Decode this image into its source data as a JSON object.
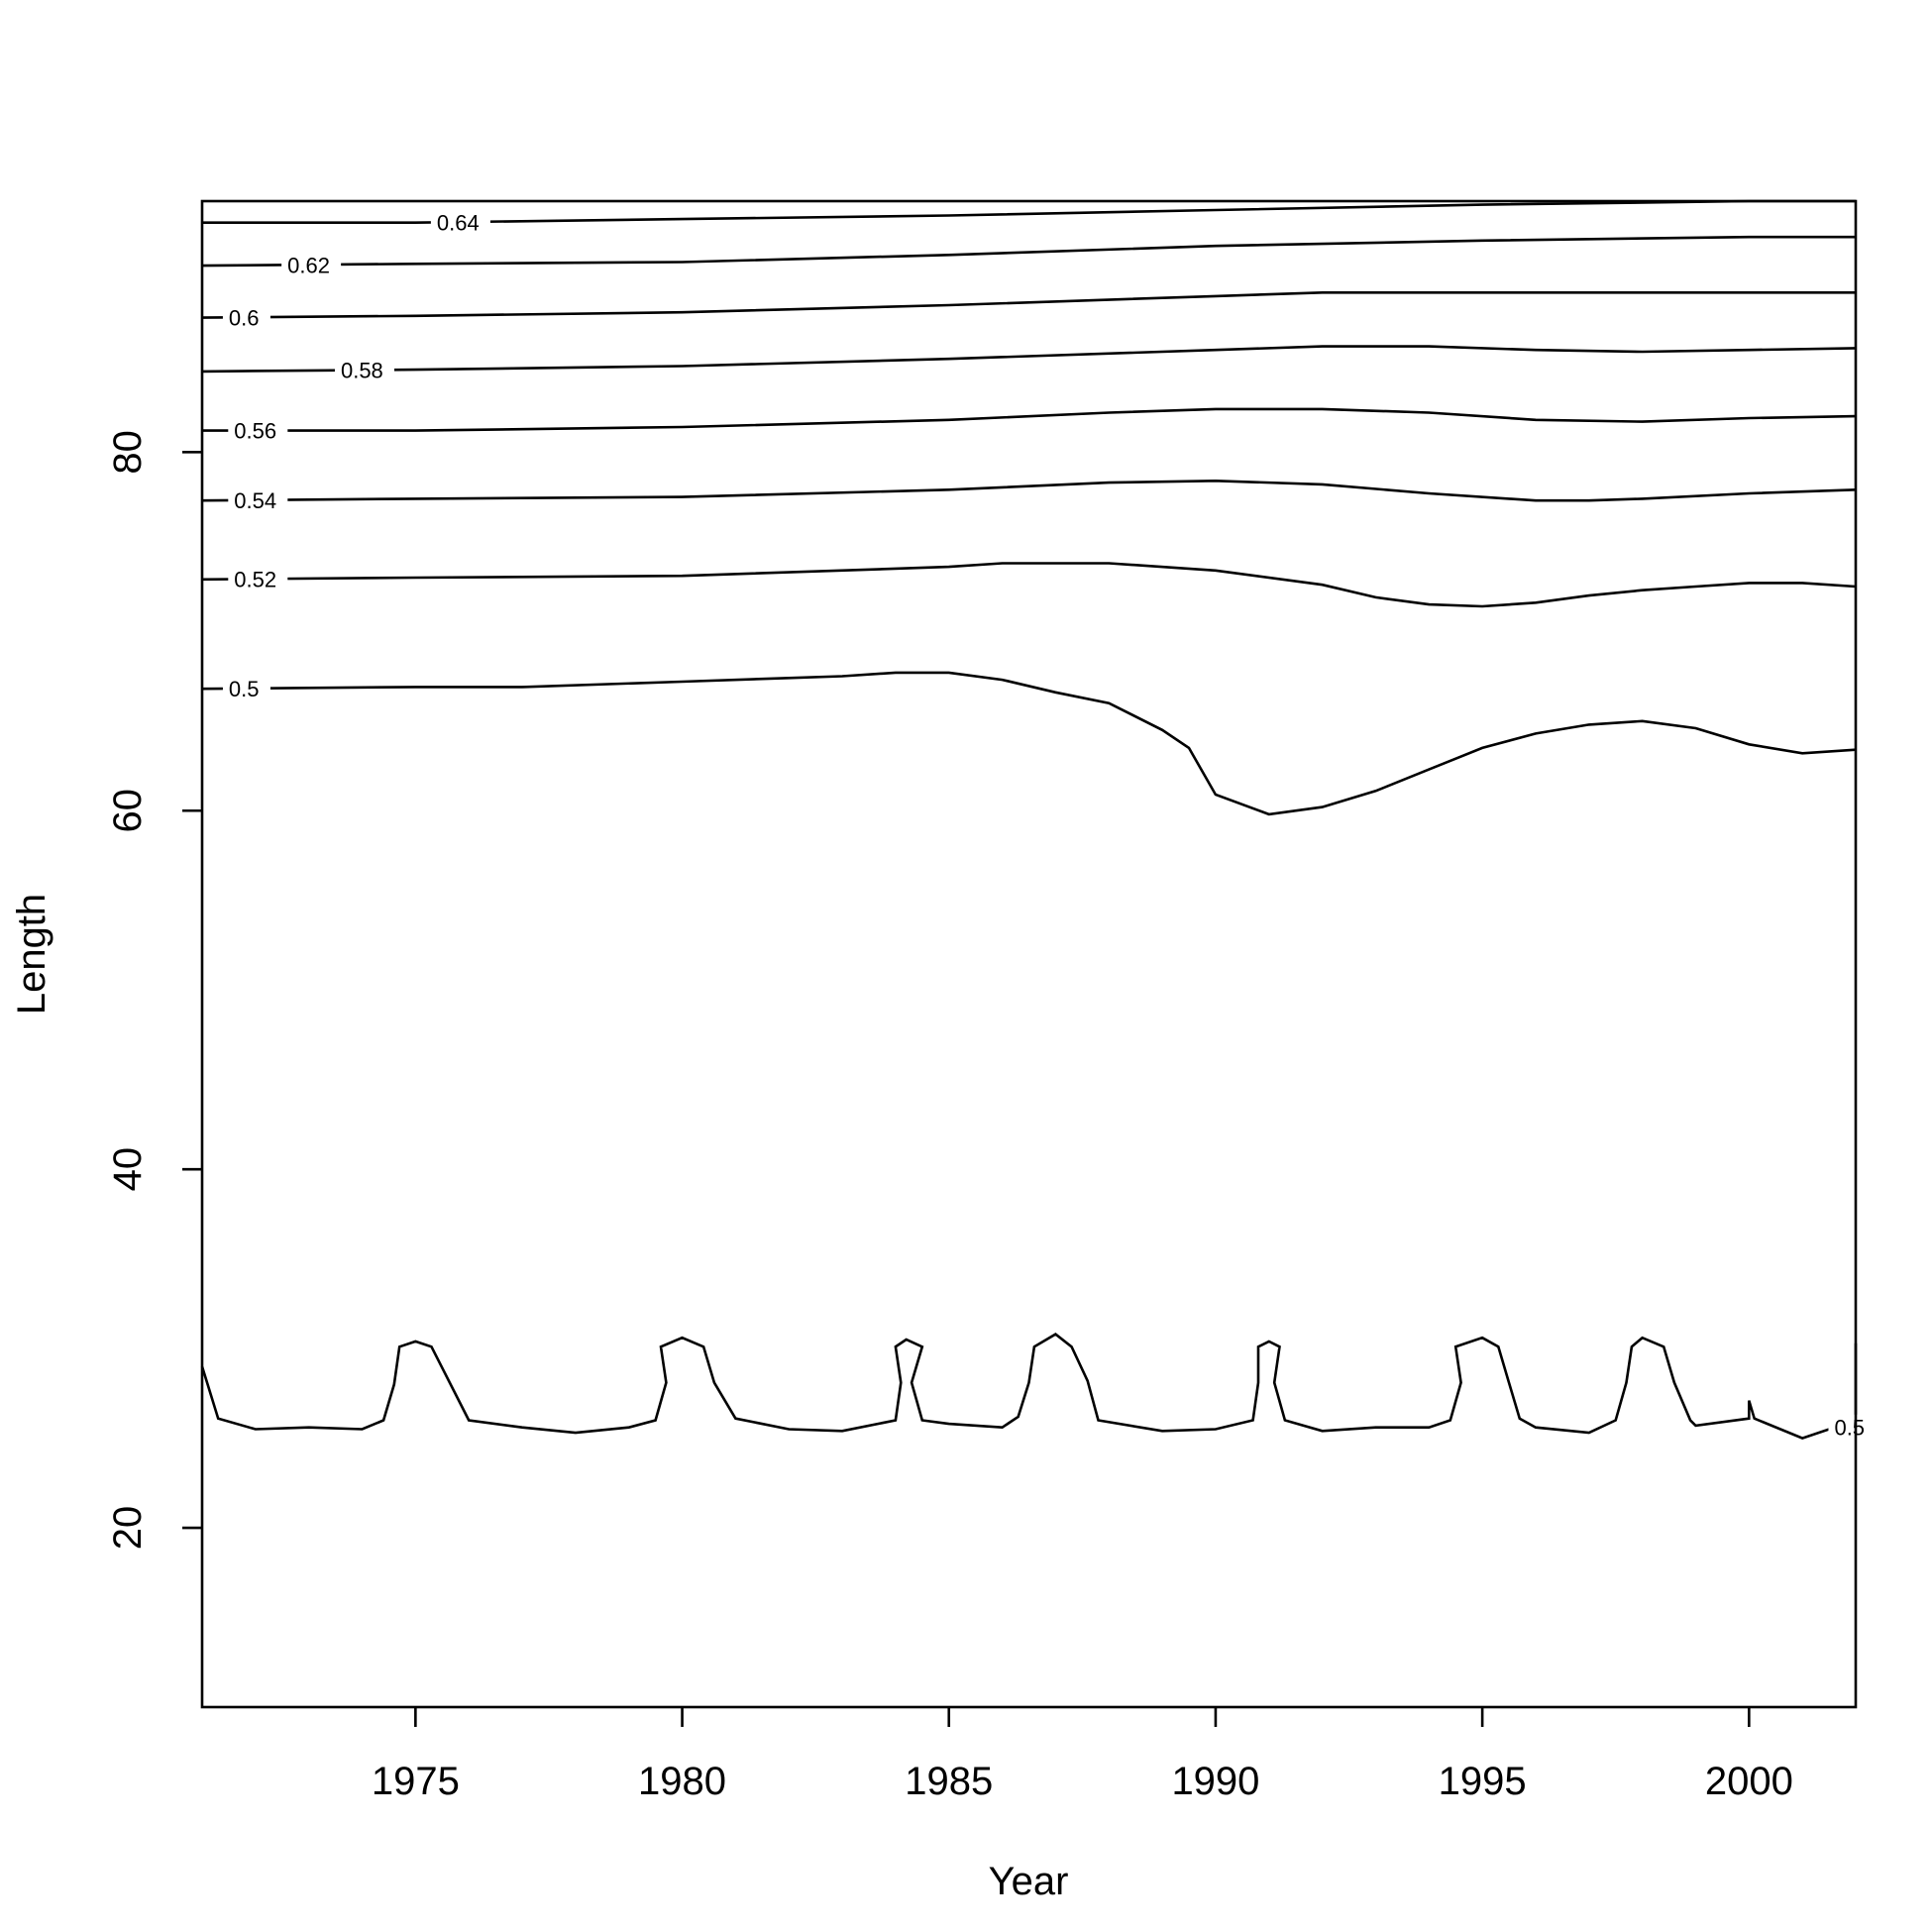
{
  "chart_data": {
    "type": "line",
    "subtype": "contour",
    "title": "",
    "xlabel": "Year",
    "ylabel": "Length",
    "xlim": [
      1971,
      2002
    ],
    "ylim": [
      10,
      94
    ],
    "x_ticks": [
      1975,
      1980,
      1985,
      1990,
      1995,
      2000
    ],
    "y_ticks": [
      20,
      40,
      60,
      80
    ],
    "grid": false,
    "contours": [
      {
        "level": 0.64,
        "label": "0.64",
        "label_year": 1975.4,
        "points": [
          [
            1971,
            92.8
          ],
          [
            1975,
            92.8
          ],
          [
            1980,
            93.0
          ],
          [
            1985,
            93.2
          ],
          [
            1990,
            93.5
          ],
          [
            1995,
            93.8
          ],
          [
            2000,
            94.0
          ],
          [
            2002,
            94.0
          ]
        ]
      },
      {
        "level": 0.62,
        "label": "0.62",
        "label_year": 1972.6,
        "points": [
          [
            1971,
            90.4
          ],
          [
            1975,
            90.5
          ],
          [
            1980,
            90.6
          ],
          [
            1985,
            91.0
          ],
          [
            1990,
            91.5
          ],
          [
            1995,
            91.8
          ],
          [
            2000,
            92.0
          ],
          [
            2002,
            92.0
          ]
        ]
      },
      {
        "level": 0.6,
        "label": "0.6",
        "label_year": 1971.5,
        "points": [
          [
            1971,
            87.5
          ],
          [
            1975,
            87.6
          ],
          [
            1980,
            87.8
          ],
          [
            1985,
            88.2
          ],
          [
            1990,
            88.7
          ],
          [
            1992,
            88.9
          ],
          [
            1995,
            88.9
          ],
          [
            2000,
            88.9
          ],
          [
            2002,
            88.9
          ]
        ]
      },
      {
        "level": 0.58,
        "label": "0.58",
        "label_year": 1973.6,
        "points": [
          [
            1971,
            84.5
          ],
          [
            1975,
            84.6
          ],
          [
            1980,
            84.8
          ],
          [
            1985,
            85.2
          ],
          [
            1990,
            85.7
          ],
          [
            1992,
            85.9
          ],
          [
            1994,
            85.9
          ],
          [
            1996,
            85.7
          ],
          [
            1998,
            85.6
          ],
          [
            2000,
            85.7
          ],
          [
            2002,
            85.8
          ]
        ]
      },
      {
        "level": 0.56,
        "label": "0.56",
        "label_year": 1971.6,
        "points": [
          [
            1971,
            81.2
          ],
          [
            1975,
            81.2
          ],
          [
            1980,
            81.4
          ],
          [
            1985,
            81.8
          ],
          [
            1988,
            82.2
          ],
          [
            1990,
            82.4
          ],
          [
            1992,
            82.4
          ],
          [
            1994,
            82.2
          ],
          [
            1996,
            81.8
          ],
          [
            1998,
            81.7
          ],
          [
            2000,
            81.9
          ],
          [
            2002,
            82.0
          ]
        ]
      },
      {
        "level": 0.54,
        "label": "0.54",
        "label_year": 1971.6,
        "points": [
          [
            1971,
            77.3
          ],
          [
            1975,
            77.4
          ],
          [
            1980,
            77.5
          ],
          [
            1985,
            77.9
          ],
          [
            1988,
            78.3
          ],
          [
            1990,
            78.4
          ],
          [
            1992,
            78.2
          ],
          [
            1994,
            77.7
          ],
          [
            1996,
            77.3
          ],
          [
            1997,
            77.3
          ],
          [
            1998,
            77.4
          ],
          [
            2000,
            77.7
          ],
          [
            2002,
            77.9
          ]
        ]
      },
      {
        "level": 0.52,
        "label": "0.52",
        "label_year": 1971.6,
        "points": [
          [
            1971,
            72.9
          ],
          [
            1975,
            73.0
          ],
          [
            1980,
            73.1
          ],
          [
            1985,
            73.6
          ],
          [
            1986,
            73.8
          ],
          [
            1988,
            73.8
          ],
          [
            1990,
            73.4
          ],
          [
            1992,
            72.6
          ],
          [
            1993,
            71.9
          ],
          [
            1994,
            71.5
          ],
          [
            1995,
            71.4
          ],
          [
            1996,
            71.6
          ],
          [
            1997,
            72.0
          ],
          [
            1998,
            72.3
          ],
          [
            1999,
            72.5
          ],
          [
            2000,
            72.7
          ],
          [
            2001,
            72.7
          ],
          [
            2002,
            72.5
          ]
        ]
      },
      {
        "level": 0.5,
        "label": "0.5",
        "label_year": 1971.5,
        "points": [
          [
            1971,
            66.8
          ],
          [
            1975,
            66.9
          ],
          [
            1977,
            66.9
          ],
          [
            1980,
            67.2
          ],
          [
            1982,
            67.4
          ],
          [
            1983,
            67.5
          ],
          [
            1984,
            67.7
          ],
          [
            1985,
            67.7
          ],
          [
            1986,
            67.3
          ],
          [
            1987,
            66.6
          ],
          [
            1988,
            66.0
          ],
          [
            1989,
            64.5
          ],
          [
            1989.5,
            63.5
          ],
          [
            1990,
            60.9
          ],
          [
            1991,
            59.8
          ],
          [
            1992,
            60.2
          ],
          [
            1993,
            61.1
          ],
          [
            1994,
            62.3
          ],
          [
            1995,
            63.5
          ],
          [
            1996,
            64.3
          ],
          [
            1997,
            64.8
          ],
          [
            1998,
            65.0
          ],
          [
            1999,
            64.6
          ],
          [
            2000,
            63.7
          ],
          [
            2001,
            63.2
          ],
          [
            2002,
            63.4
          ]
        ]
      },
      {
        "level": 0.5,
        "label": "0.5",
        "label_year": 2001.6,
        "points": [
          [
            1971,
            29.0
          ],
          [
            1971.3,
            26.1
          ],
          [
            1972,
            25.5
          ],
          [
            1973,
            25.6
          ],
          [
            1974,
            25.5
          ],
          [
            1974.4,
            26.0
          ],
          [
            1974.6,
            28.0
          ],
          [
            1974.7,
            30.1
          ],
          [
            1975,
            30.4
          ],
          [
            1975.3,
            30.1
          ],
          [
            1976,
            26.0
          ],
          [
            1977,
            25.6
          ],
          [
            1978,
            25.3
          ],
          [
            1979,
            25.6
          ],
          [
            1979.5,
            26.0
          ],
          [
            1979.7,
            28.1
          ],
          [
            1979.6,
            30.1
          ],
          [
            1980,
            30.6
          ],
          [
            1980.4,
            30.1
          ],
          [
            1980.6,
            28.1
          ],
          [
            1981,
            26.1
          ],
          [
            1982,
            25.5
          ],
          [
            1983,
            25.4
          ],
          [
            1984,
            26.0
          ],
          [
            1984.1,
            28.1
          ],
          [
            1984.0,
            30.1
          ],
          [
            1984.2,
            30.5
          ],
          [
            1984.5,
            30.1
          ],
          [
            1984.3,
            28.1
          ],
          [
            1984.5,
            26.0
          ],
          [
            1985,
            25.8
          ],
          [
            1986,
            25.6
          ],
          [
            1986.3,
            26.2
          ],
          [
            1986.5,
            28.1
          ],
          [
            1986.6,
            30.1
          ],
          [
            1987,
            30.8
          ],
          [
            1987.3,
            30.1
          ],
          [
            1987.6,
            28.2
          ],
          [
            1987.8,
            26.0
          ],
          [
            1989,
            25.4
          ],
          [
            1990,
            25.5
          ],
          [
            1990.7,
            26.0
          ],
          [
            1990.8,
            28.1
          ],
          [
            1990.8,
            30.1
          ],
          [
            1991,
            30.4
          ],
          [
            1991.2,
            30.1
          ],
          [
            1991.1,
            28.1
          ],
          [
            1991.3,
            26.0
          ],
          [
            1992,
            25.4
          ],
          [
            1993,
            25.6
          ],
          [
            1994,
            25.6
          ],
          [
            1994.4,
            26.0
          ],
          [
            1994.6,
            28.1
          ],
          [
            1994.5,
            30.1
          ],
          [
            1995,
            30.6
          ],
          [
            1995.3,
            30.1
          ],
          [
            1995.5,
            28.1
          ],
          [
            1995.7,
            26.1
          ],
          [
            1996,
            25.6
          ],
          [
            1997,
            25.3
          ],
          [
            1997.5,
            26.0
          ],
          [
            1997.7,
            28.1
          ],
          [
            1997.8,
            30.1
          ],
          [
            1998,
            30.6
          ],
          [
            1998.4,
            30.1
          ],
          [
            1998.6,
            28.1
          ],
          [
            1998.9,
            26.0
          ],
          [
            1999,
            25.7
          ],
          [
            2000,
            26.1
          ],
          [
            2000,
            27.1
          ],
          [
            2000.1,
            26.1
          ],
          [
            2001,
            25.0
          ],
          [
            2002,
            26.0
          ],
          [
            2002,
            30.3
          ]
        ]
      }
    ]
  }
}
